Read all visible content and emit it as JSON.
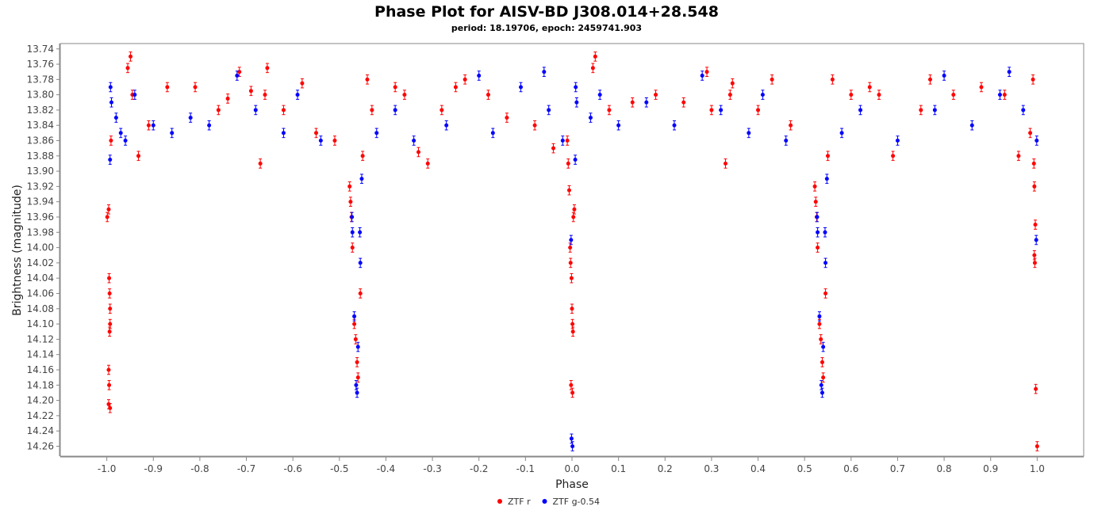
{
  "chart_data": {
    "type": "scatter",
    "title": "Phase Plot for AISV-BD J308.014+28.548",
    "subtitle": "period: 18.19706, epoch: 2459741.903",
    "xlabel": "Phase",
    "ylabel": "Brightness (magnitude)",
    "xlim": [
      -1.1,
      1.1
    ],
    "ylim": [
      13.733,
      14.273
    ],
    "y_inverted": true,
    "x_ticks": [
      -1.0,
      -0.9,
      -0.8,
      -0.7,
      -0.6,
      -0.5,
      -0.4,
      -0.3,
      -0.2,
      -0.1,
      0.0,
      0.1,
      0.2,
      0.3,
      0.4,
      0.5,
      0.6,
      0.7,
      0.8,
      0.9,
      1.0
    ],
    "x_tick_labels": [
      "-1.0",
      "-0.9",
      "-0.8",
      "-0.7",
      "-0.6",
      "-0.5",
      "-0.4",
      "-0.3",
      "-0.2",
      "-0.1",
      "0.0",
      "0.1",
      "0.2",
      "0.3",
      "0.4",
      "0.5",
      "0.6",
      "0.7",
      "0.8",
      "0.9",
      "1.0"
    ],
    "y_ticks": [
      13.74,
      13.76,
      13.78,
      13.8,
      13.82,
      13.84,
      13.86,
      13.88,
      13.9,
      13.92,
      13.94,
      13.96,
      13.98,
      14.0,
      14.02,
      14.04,
      14.06,
      14.08,
      14.1,
      14.12,
      14.14,
      14.16,
      14.18,
      14.2,
      14.22,
      14.24,
      14.26
    ],
    "y_tick_labels": [
      "13.74",
      "13.76",
      "13.78",
      "13.80",
      "13.82",
      "13.84",
      "13.86",
      "13.88",
      "13.90",
      "13.92",
      "13.94",
      "13.96",
      "13.98",
      "14.00",
      "14.02",
      "14.04",
      "14.06",
      "14.08",
      "14.10",
      "14.12",
      "14.14",
      "14.16",
      "14.18",
      "14.20",
      "14.22",
      "14.24",
      "14.26"
    ],
    "grid": false,
    "legend_position": "bottom-center",
    "series": [
      {
        "name": "ZTF r",
        "color": "#ff0000",
        "points": [
          {
            "x": -0.999,
            "y": 13.96
          },
          {
            "x": -0.996,
            "y": 13.95
          },
          {
            "x": -0.995,
            "y": 14.04
          },
          {
            "x": -0.994,
            "y": 14.06
          },
          {
            "x": -0.993,
            "y": 14.08
          },
          {
            "x": -0.993,
            "y": 14.1
          },
          {
            "x": -0.994,
            "y": 14.11
          },
          {
            "x": -0.996,
            "y": 14.16
          },
          {
            "x": -0.995,
            "y": 14.18
          },
          {
            "x": -0.996,
            "y": 14.205
          },
          {
            "x": -0.993,
            "y": 14.21
          },
          {
            "x": -0.991,
            "y": 13.86
          },
          {
            "x": -0.955,
            "y": 13.765
          },
          {
            "x": -0.949,
            "y": 13.75
          },
          {
            "x": -0.945,
            "y": 13.8
          },
          {
            "x": -0.932,
            "y": 13.88
          },
          {
            "x": -0.91,
            "y": 13.84
          },
          {
            "x": -0.87,
            "y": 13.79
          },
          {
            "x": -0.81,
            "y": 13.79
          },
          {
            "x": -0.76,
            "y": 13.82
          },
          {
            "x": -0.74,
            "y": 13.805
          },
          {
            "x": -0.715,
            "y": 13.77
          },
          {
            "x": -0.69,
            "y": 13.795
          },
          {
            "x": -0.655,
            "y": 13.765
          },
          {
            "x": -0.66,
            "y": 13.8
          },
          {
            "x": -0.67,
            "y": 13.89
          },
          {
            "x": -0.62,
            "y": 13.82
          },
          {
            "x": -0.58,
            "y": 13.785
          },
          {
            "x": -0.55,
            "y": 13.85
          },
          {
            "x": -0.51,
            "y": 13.86
          },
          {
            "x": -0.478,
            "y": 13.92
          },
          {
            "x": -0.476,
            "y": 13.94
          },
          {
            "x": -0.474,
            "y": 13.96
          },
          {
            "x": -0.472,
            "y": 14.0
          },
          {
            "x": -0.468,
            "y": 14.1
          },
          {
            "x": -0.465,
            "y": 14.12
          },
          {
            "x": -0.462,
            "y": 14.15
          },
          {
            "x": -0.46,
            "y": 14.17
          },
          {
            "x": -0.455,
            "y": 14.06
          },
          {
            "x": -0.45,
            "y": 13.88
          },
          {
            "x": -0.44,
            "y": 13.78
          },
          {
            "x": -0.43,
            "y": 13.82
          },
          {
            "x": -0.38,
            "y": 13.79
          },
          {
            "x": -0.36,
            "y": 13.8
          },
          {
            "x": -0.33,
            "y": 13.875
          },
          {
            "x": -0.31,
            "y": 13.89
          },
          {
            "x": -0.28,
            "y": 13.82
          },
          {
            "x": -0.25,
            "y": 13.79
          },
          {
            "x": -0.23,
            "y": 13.78
          },
          {
            "x": -0.18,
            "y": 13.8
          },
          {
            "x": -0.14,
            "y": 13.83
          },
          {
            "x": -0.08,
            "y": 13.84
          },
          {
            "x": -0.04,
            "y": 13.87
          },
          {
            "x": -0.01,
            "y": 13.86
          },
          {
            "x": -0.008,
            "y": 13.89
          },
          {
            "x": -0.006,
            "y": 13.925
          },
          {
            "x": -0.004,
            "y": 14.0
          },
          {
            "x": -0.003,
            "y": 14.02
          },
          {
            "x": -0.001,
            "y": 14.04
          },
          {
            "x": 0.0,
            "y": 14.08
          },
          {
            "x": 0.001,
            "y": 14.1
          },
          {
            "x": 0.002,
            "y": 14.11
          },
          {
            "x": -0.002,
            "y": 14.18
          },
          {
            "x": 0.001,
            "y": 14.19
          },
          {
            "x": 0.003,
            "y": 13.96
          },
          {
            "x": 0.005,
            "y": 13.95
          },
          {
            "x": 0.045,
            "y": 13.765
          },
          {
            "x": 0.05,
            "y": 13.75
          },
          {
            "x": 0.08,
            "y": 13.82
          },
          {
            "x": 0.13,
            "y": 13.81
          },
          {
            "x": 0.18,
            "y": 13.8
          },
          {
            "x": 0.24,
            "y": 13.81
          },
          {
            "x": 0.29,
            "y": 13.77
          },
          {
            "x": 0.3,
            "y": 13.82
          },
          {
            "x": 0.345,
            "y": 13.785
          },
          {
            "x": 0.34,
            "y": 13.8
          },
          {
            "x": 0.33,
            "y": 13.89
          },
          {
            "x": 0.4,
            "y": 13.82
          },
          {
            "x": 0.43,
            "y": 13.78
          },
          {
            "x": 0.47,
            "y": 13.84
          },
          {
            "x": 0.522,
            "y": 13.92
          },
          {
            "x": 0.524,
            "y": 13.94
          },
          {
            "x": 0.526,
            "y": 13.96
          },
          {
            "x": 0.528,
            "y": 14.0
          },
          {
            "x": 0.532,
            "y": 14.1
          },
          {
            "x": 0.535,
            "y": 14.12
          },
          {
            "x": 0.538,
            "y": 14.15
          },
          {
            "x": 0.54,
            "y": 14.17
          },
          {
            "x": 0.545,
            "y": 14.06
          },
          {
            "x": 0.55,
            "y": 13.88
          },
          {
            "x": 0.56,
            "y": 13.78
          },
          {
            "x": 0.6,
            "y": 13.8
          },
          {
            "x": 0.64,
            "y": 13.79
          },
          {
            "x": 0.66,
            "y": 13.8
          },
          {
            "x": 0.69,
            "y": 13.88
          },
          {
            "x": 0.75,
            "y": 13.82
          },
          {
            "x": 0.77,
            "y": 13.78
          },
          {
            "x": 0.82,
            "y": 13.8
          },
          {
            "x": 0.88,
            "y": 13.79
          },
          {
            "x": 0.93,
            "y": 13.8
          },
          {
            "x": 0.96,
            "y": 13.88
          },
          {
            "x": 0.985,
            "y": 13.85
          },
          {
            "x": 0.991,
            "y": 13.78
          },
          {
            "x": 0.993,
            "y": 13.89
          },
          {
            "x": 0.994,
            "y": 13.92
          },
          {
            "x": 0.996,
            "y": 13.97
          },
          {
            "x": 0.994,
            "y": 14.01
          },
          {
            "x": 0.995,
            "y": 14.02
          },
          {
            "x": 0.997,
            "y": 14.185
          },
          {
            "x": 1.0,
            "y": 14.26
          }
        ]
      },
      {
        "name": "ZTF g-0.54",
        "color": "#0000ff",
        "points": [
          {
            "x": -0.993,
            "y": 13.885
          },
          {
            "x": -0.992,
            "y": 13.79
          },
          {
            "x": -0.99,
            "y": 13.81
          },
          {
            "x": -0.98,
            "y": 13.83
          },
          {
            "x": -0.97,
            "y": 13.85
          },
          {
            "x": -0.96,
            "y": 13.86
          },
          {
            "x": -0.94,
            "y": 13.8
          },
          {
            "x": -0.9,
            "y": 13.84
          },
          {
            "x": -0.86,
            "y": 13.85
          },
          {
            "x": -0.82,
            "y": 13.83
          },
          {
            "x": -0.78,
            "y": 13.84
          },
          {
            "x": -0.72,
            "y": 13.775
          },
          {
            "x": -0.68,
            "y": 13.82
          },
          {
            "x": -0.62,
            "y": 13.85
          },
          {
            "x": -0.59,
            "y": 13.8
          },
          {
            "x": -0.54,
            "y": 13.86
          },
          {
            "x": -0.473,
            "y": 13.96
          },
          {
            "x": -0.472,
            "y": 13.98
          },
          {
            "x": -0.468,
            "y": 14.09
          },
          {
            "x": -0.464,
            "y": 14.18
          },
          {
            "x": -0.462,
            "y": 14.19
          },
          {
            "x": -0.46,
            "y": 14.13
          },
          {
            "x": -0.456,
            "y": 13.98
          },
          {
            "x": -0.455,
            "y": 14.02
          },
          {
            "x": -0.452,
            "y": 13.91
          },
          {
            "x": -0.42,
            "y": 13.85
          },
          {
            "x": -0.38,
            "y": 13.82
          },
          {
            "x": -0.34,
            "y": 13.86
          },
          {
            "x": -0.27,
            "y": 13.84
          },
          {
            "x": -0.2,
            "y": 13.775
          },
          {
            "x": -0.17,
            "y": 13.85
          },
          {
            "x": -0.11,
            "y": 13.79
          },
          {
            "x": -0.06,
            "y": 13.77
          },
          {
            "x": -0.05,
            "y": 13.82
          },
          {
            "x": -0.02,
            "y": 13.86
          },
          {
            "x": -0.002,
            "y": 13.99
          },
          {
            "x": -0.001,
            "y": 14.25
          },
          {
            "x": 0.001,
            "y": 14.26
          },
          {
            "x": 0.007,
            "y": 13.885
          },
          {
            "x": 0.008,
            "y": 13.79
          },
          {
            "x": 0.01,
            "y": 13.81
          },
          {
            "x": 0.04,
            "y": 13.83
          },
          {
            "x": 0.06,
            "y": 13.8
          },
          {
            "x": 0.1,
            "y": 13.84
          },
          {
            "x": 0.16,
            "y": 13.81
          },
          {
            "x": 0.22,
            "y": 13.84
          },
          {
            "x": 0.28,
            "y": 13.775
          },
          {
            "x": 0.32,
            "y": 13.82
          },
          {
            "x": 0.38,
            "y": 13.85
          },
          {
            "x": 0.41,
            "y": 13.8
          },
          {
            "x": 0.46,
            "y": 13.86
          },
          {
            "x": 0.527,
            "y": 13.96
          },
          {
            "x": 0.528,
            "y": 13.98
          },
          {
            "x": 0.532,
            "y": 14.09
          },
          {
            "x": 0.536,
            "y": 14.18
          },
          {
            "x": 0.538,
            "y": 14.19
          },
          {
            "x": 0.54,
            "y": 14.13
          },
          {
            "x": 0.544,
            "y": 13.98
          },
          {
            "x": 0.545,
            "y": 14.02
          },
          {
            "x": 0.548,
            "y": 13.91
          },
          {
            "x": 0.58,
            "y": 13.85
          },
          {
            "x": 0.62,
            "y": 13.82
          },
          {
            "x": 0.7,
            "y": 13.86
          },
          {
            "x": 0.78,
            "y": 13.82
          },
          {
            "x": 0.8,
            "y": 13.775
          },
          {
            "x": 0.86,
            "y": 13.84
          },
          {
            "x": 0.92,
            "y": 13.8
          },
          {
            "x": 0.94,
            "y": 13.77
          },
          {
            "x": 0.97,
            "y": 13.82
          },
          {
            "x": 0.998,
            "y": 13.99
          },
          {
            "x": 0.999,
            "y": 13.86
          }
        ]
      }
    ]
  }
}
